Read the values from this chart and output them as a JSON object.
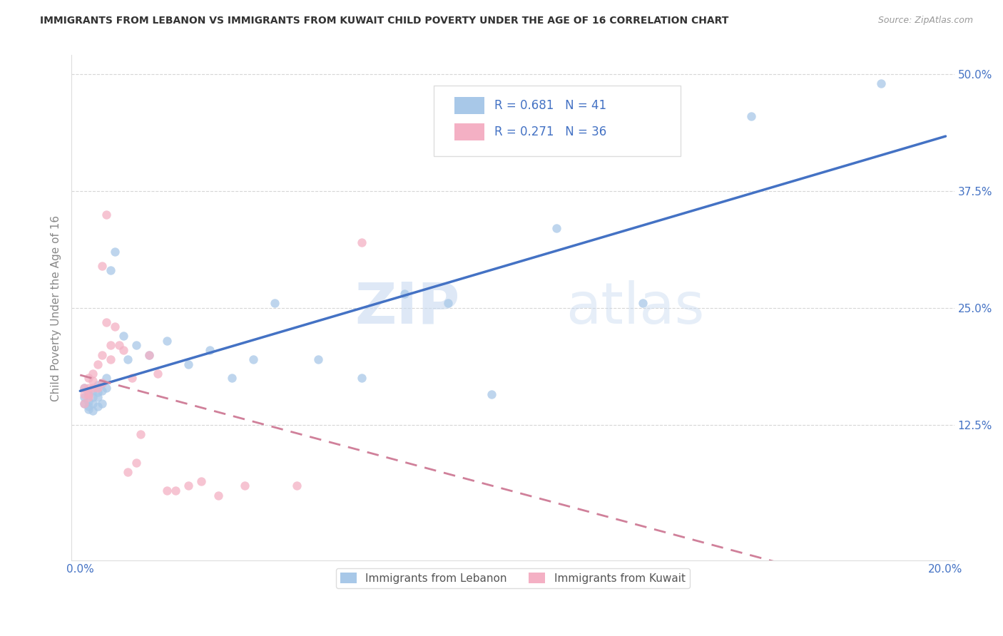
{
  "title": "IMMIGRANTS FROM LEBANON VS IMMIGRANTS FROM KUWAIT CHILD POVERTY UNDER THE AGE OF 16 CORRELATION CHART",
  "source": "Source: ZipAtlas.com",
  "ylabel": "Child Poverty Under the Age of 16",
  "xlabel_ticks": [
    "0.0%",
    "",
    "",
    "",
    "20.0%"
  ],
  "xlabel_vals": [
    0.0,
    0.05,
    0.1,
    0.15,
    0.2
  ],
  "ylabel_ticks": [
    "12.5%",
    "25.0%",
    "37.5%",
    "50.0%"
  ],
  "ylabel_vals": [
    0.125,
    0.25,
    0.375,
    0.5
  ],
  "xlim": [
    -0.002,
    0.202
  ],
  "ylim": [
    -0.02,
    0.52
  ],
  "lebanon_R": 0.681,
  "lebanon_N": 41,
  "kuwait_R": 0.271,
  "kuwait_N": 36,
  "lebanon_color": "#a8c8e8",
  "kuwait_color": "#f4b0c4",
  "lebanon_line_color": "#4472c4",
  "kuwait_line_color": "#d0809a",
  "watermark_zip": "ZIP",
  "watermark_atlas": "atlas",
  "lebanon_x": [
    0.001,
    0.001,
    0.001,
    0.002,
    0.002,
    0.002,
    0.002,
    0.003,
    0.003,
    0.003,
    0.003,
    0.004,
    0.004,
    0.004,
    0.004,
    0.005,
    0.005,
    0.005,
    0.006,
    0.006,
    0.007,
    0.008,
    0.01,
    0.011,
    0.013,
    0.016,
    0.02,
    0.025,
    0.03,
    0.035,
    0.04,
    0.045,
    0.055,
    0.065,
    0.075,
    0.085,
    0.095,
    0.11,
    0.13,
    0.155,
    0.185
  ],
  "lebanon_y": [
    0.165,
    0.155,
    0.148,
    0.158,
    0.15,
    0.145,
    0.142,
    0.162,
    0.155,
    0.148,
    0.14,
    0.168,
    0.16,
    0.155,
    0.145,
    0.17,
    0.162,
    0.148,
    0.175,
    0.165,
    0.29,
    0.31,
    0.22,
    0.195,
    0.21,
    0.2,
    0.215,
    0.19,
    0.205,
    0.175,
    0.195,
    0.255,
    0.195,
    0.175,
    0.265,
    0.255,
    0.158,
    0.335,
    0.255,
    0.455,
    0.49
  ],
  "kuwait_x": [
    0.001,
    0.001,
    0.001,
    0.002,
    0.002,
    0.002,
    0.002,
    0.003,
    0.003,
    0.003,
    0.004,
    0.004,
    0.005,
    0.005,
    0.005,
    0.006,
    0.006,
    0.007,
    0.007,
    0.008,
    0.009,
    0.01,
    0.011,
    0.012,
    0.013,
    0.014,
    0.016,
    0.018,
    0.02,
    0.022,
    0.025,
    0.028,
    0.032,
    0.038,
    0.05,
    0.065
  ],
  "kuwait_y": [
    0.165,
    0.158,
    0.148,
    0.175,
    0.165,
    0.158,
    0.155,
    0.18,
    0.172,
    0.165,
    0.19,
    0.165,
    0.295,
    0.2,
    0.17,
    0.35,
    0.235,
    0.21,
    0.195,
    0.23,
    0.21,
    0.205,
    0.075,
    0.175,
    0.085,
    0.115,
    0.2,
    0.18,
    0.055,
    0.055,
    0.06,
    0.065,
    0.05,
    0.06,
    0.06,
    0.32
  ]
}
